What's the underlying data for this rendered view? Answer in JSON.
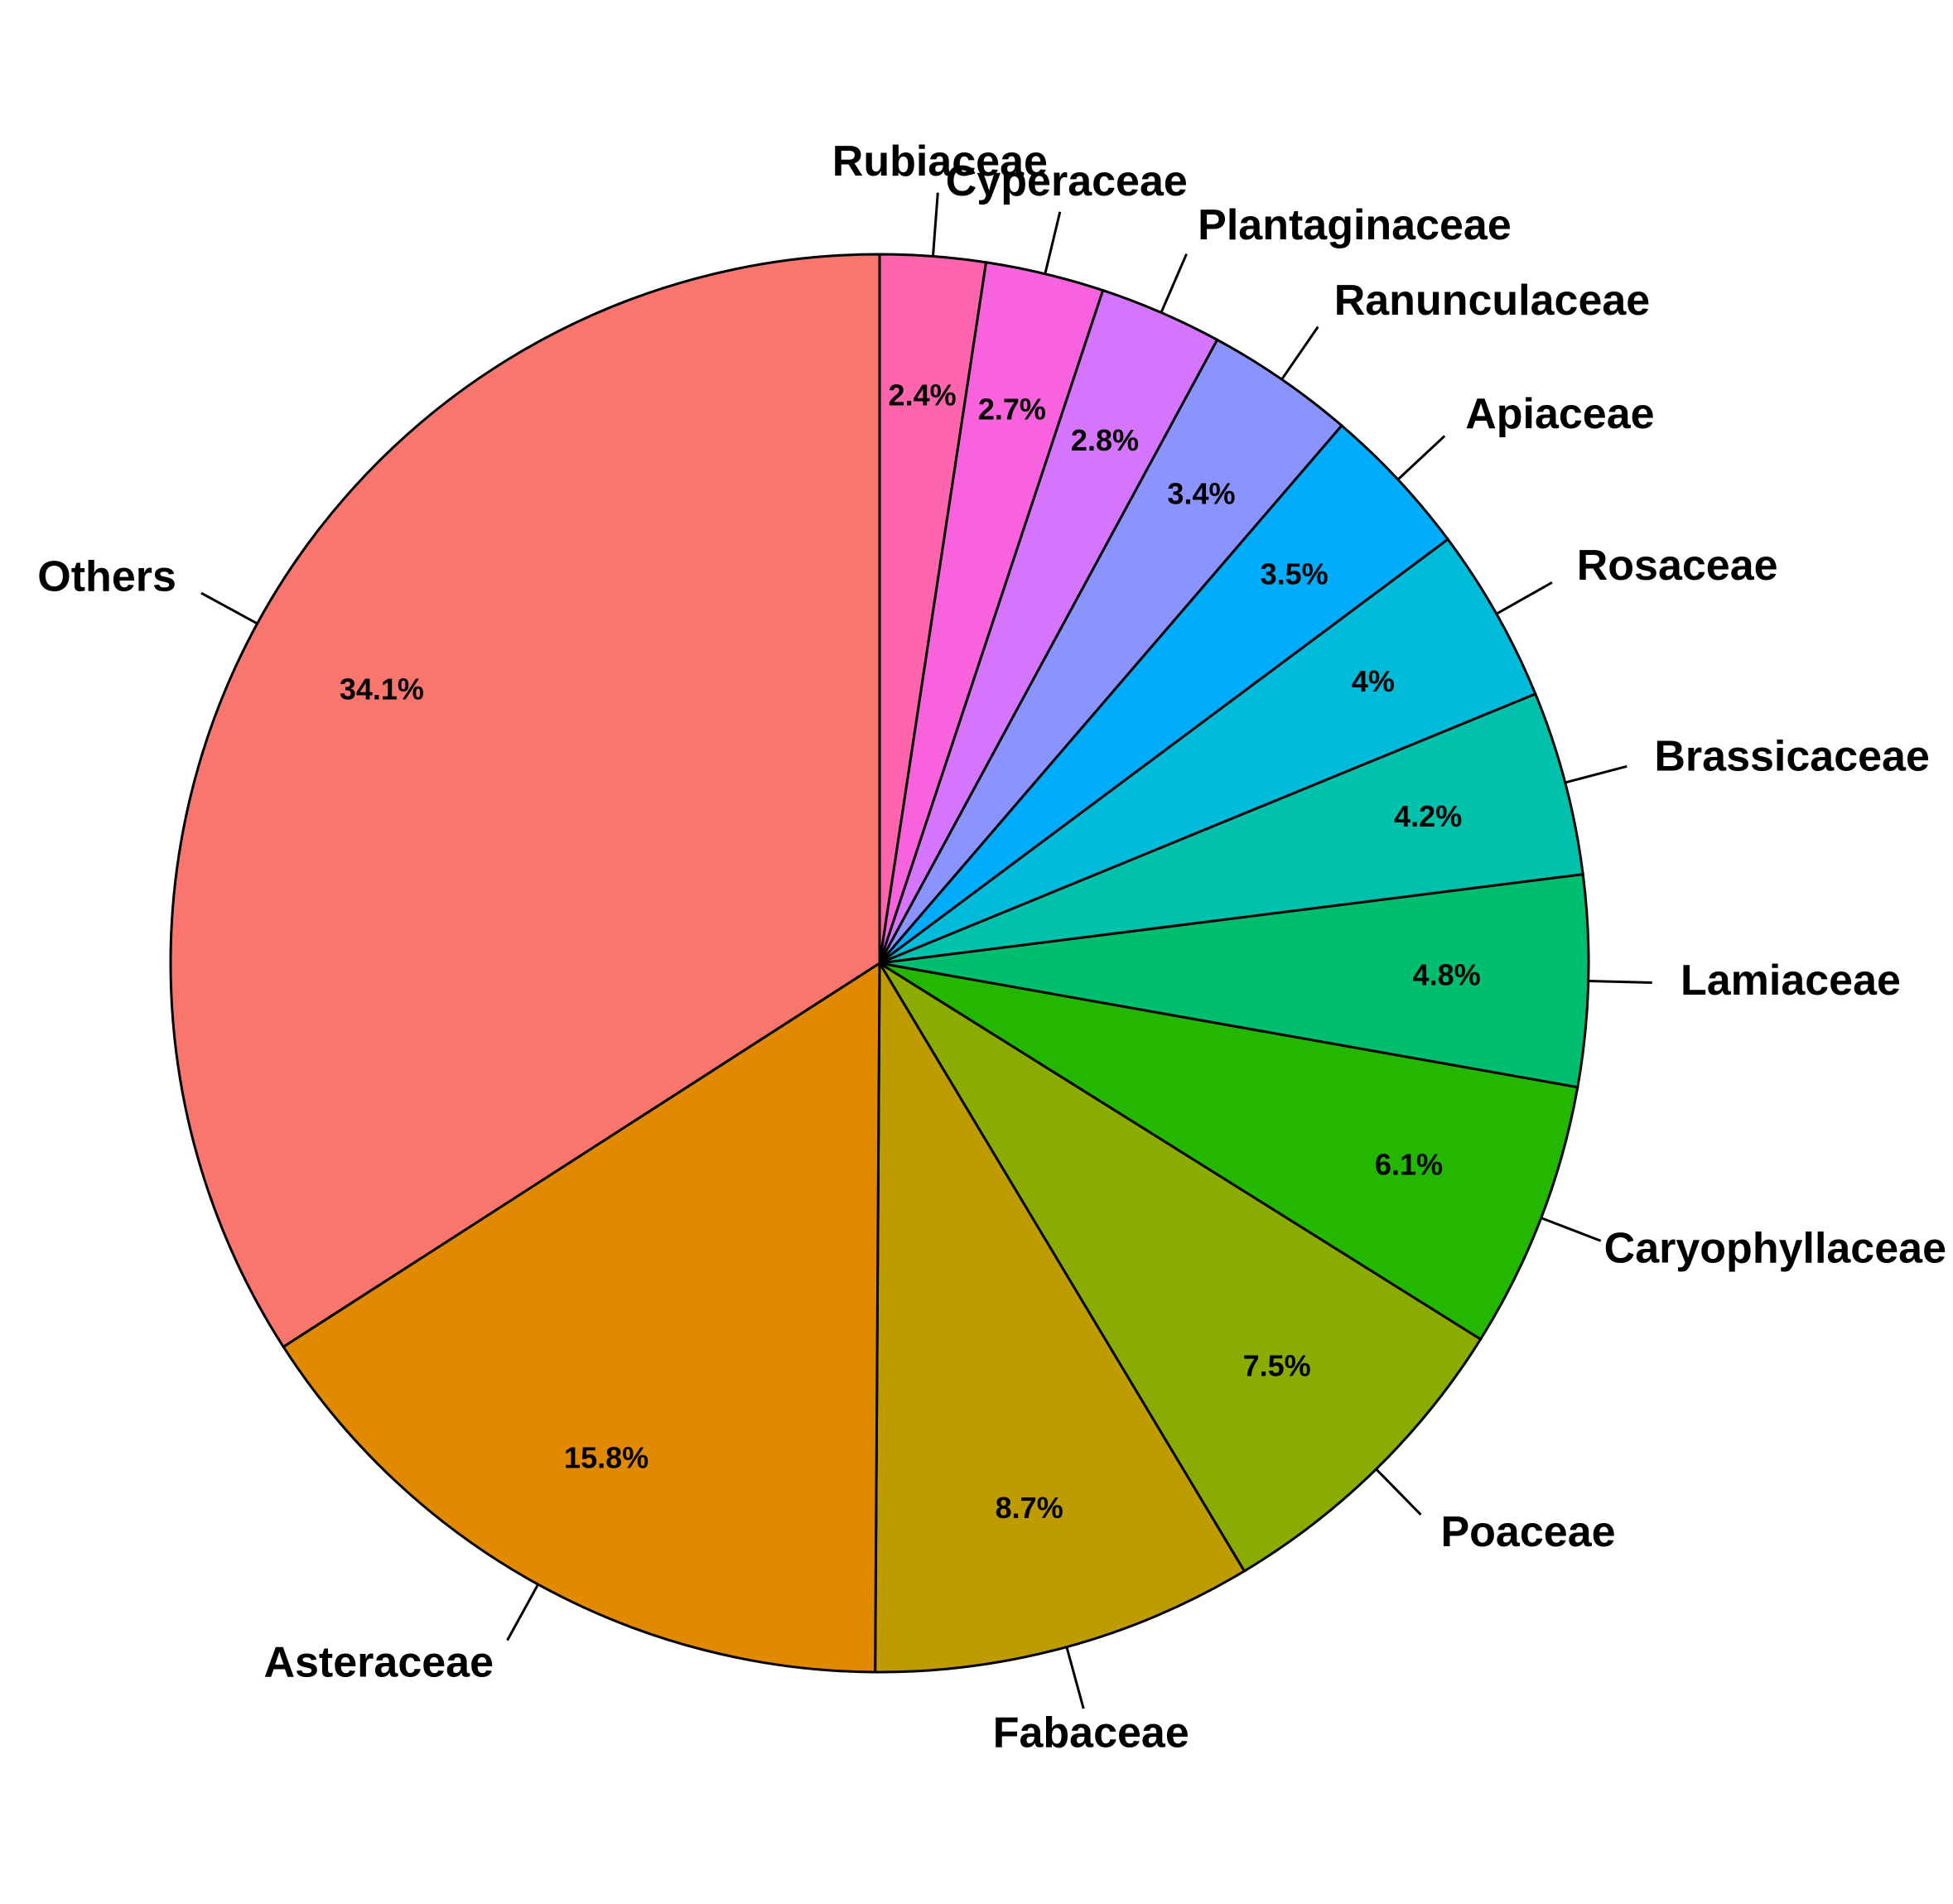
{
  "chart_data": {
    "type": "pie",
    "categories": [
      "Rubiaceae",
      "Cyperaceae",
      "Plantaginaceae",
      "Ranunculaceae",
      "Apiaceae",
      "Rosaceae",
      "Brassicaceae",
      "Lamiaceae",
      "Caryophyllaceae",
      "Poaceae",
      "Fabaceae",
      "Asteraceae",
      "Others"
    ],
    "values": [
      2.4,
      2.7,
      2.8,
      3.4,
      3.5,
      4,
      4.2,
      4.8,
      6.1,
      7.5,
      8.7,
      15.8,
      34.1
    ],
    "value_labels": [
      "2.4%",
      "2.7%",
      "2.8%",
      "3.4%",
      "3.5%",
      "4%",
      "4.2%",
      "4.8%",
      "6.1%",
      "7.5%",
      "8.7%",
      "15.8%",
      "34.1%"
    ],
    "colors": [
      "#FF65AC",
      "#F962DD",
      "#D575FE",
      "#8B93FF",
      "#00ACFC",
      "#00BBDA",
      "#00C1AB",
      "#00BE70",
      "#24B700",
      "#8CAB00",
      "#BE9C00",
      "#E18A00",
      "#F8766D"
    ]
  }
}
